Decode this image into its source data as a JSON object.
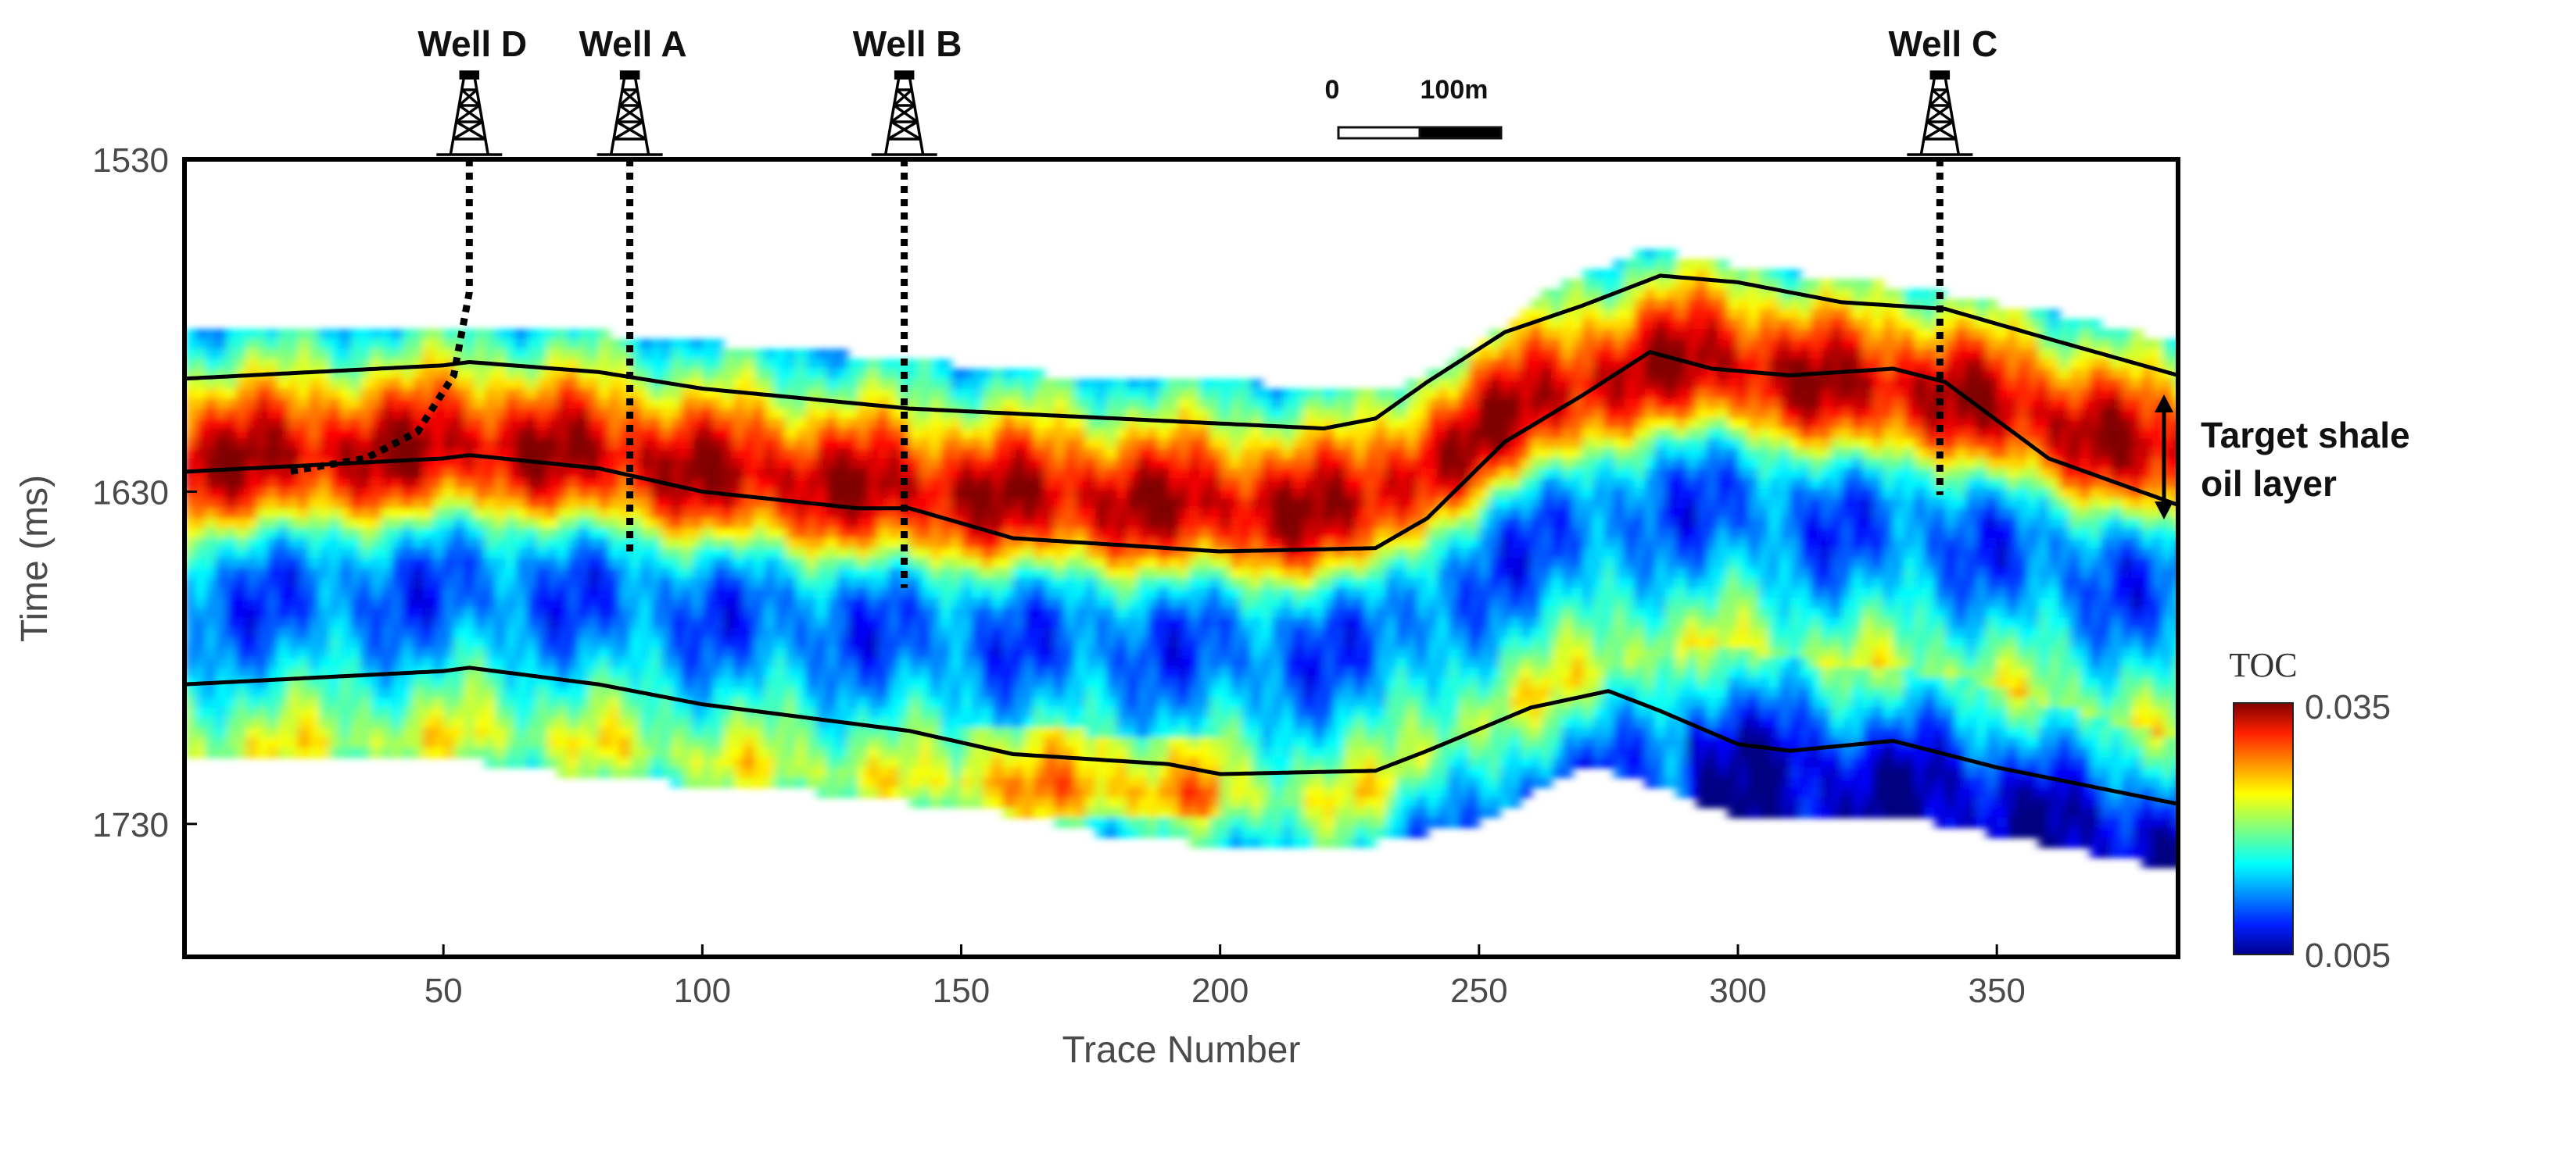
{
  "chart_data": {
    "type": "heatmap",
    "xlabel": "Trace Number",
    "ylabel": "Time (ms)",
    "xlim": [
      0,
      385
    ],
    "ylim": [
      1530,
      1770
    ],
    "x_ticks": [
      50,
      100,
      150,
      200,
      250,
      300,
      350
    ],
    "y_ticks": [
      1530,
      1630,
      1730
    ],
    "colorbar": {
      "title": "TOC",
      "min": 0.005,
      "max": 0.035,
      "min_label": "0.005",
      "max_label": "0.035"
    },
    "wells": [
      {
        "name": "Well D",
        "trace": 55,
        "path": [
          [
            55,
            1530
          ],
          [
            55,
            1570
          ],
          [
            52,
            1595
          ],
          [
            45,
            1612
          ],
          [
            35,
            1620
          ],
          [
            20,
            1624
          ]
        ]
      },
      {
        "name": "Well A",
        "trace": 86,
        "path": [
          [
            86,
            1530
          ],
          [
            86,
            1649
          ]
        ]
      },
      {
        "name": "Well B",
        "trace": 139,
        "path": [
          [
            139,
            1530
          ],
          [
            139,
            1659
          ]
        ]
      },
      {
        "name": "Well C",
        "trace": 339,
        "path": [
          [
            339,
            1530
          ],
          [
            339,
            1631
          ]
        ]
      }
    ],
    "scale_bar": {
      "start_label": "0",
      "end_label": "100m",
      "length_m": 100
    },
    "horizons": [
      {
        "name": "top-horizon",
        "points": [
          [
            0,
            1596
          ],
          [
            50,
            1592
          ],
          [
            55,
            1591
          ],
          [
            80,
            1594
          ],
          [
            100,
            1599
          ],
          [
            140,
            1605
          ],
          [
            180,
            1608
          ],
          [
            220,
            1611
          ],
          [
            230,
            1608
          ],
          [
            240,
            1597
          ],
          [
            255,
            1582
          ],
          [
            270,
            1574
          ],
          [
            285,
            1565
          ],
          [
            300,
            1567
          ],
          [
            320,
            1573
          ],
          [
            340,
            1575
          ],
          [
            360,
            1584
          ],
          [
            385,
            1595
          ]
        ]
      },
      {
        "name": "middle-horizon",
        "points": [
          [
            0,
            1624
          ],
          [
            50,
            1620
          ],
          [
            55,
            1619
          ],
          [
            80,
            1623
          ],
          [
            100,
            1630
          ],
          [
            130,
            1635
          ],
          [
            140,
            1635
          ],
          [
            160,
            1644
          ],
          [
            200,
            1648
          ],
          [
            230,
            1647
          ],
          [
            240,
            1638
          ],
          [
            255,
            1615
          ],
          [
            270,
            1601
          ],
          [
            283,
            1588
          ],
          [
            295,
            1593
          ],
          [
            310,
            1595
          ],
          [
            330,
            1593
          ],
          [
            340,
            1597
          ],
          [
            360,
            1620
          ],
          [
            385,
            1634
          ]
        ]
      },
      {
        "name": "bottom-horizon",
        "points": [
          [
            0,
            1688
          ],
          [
            50,
            1684
          ],
          [
            55,
            1683
          ],
          [
            80,
            1688
          ],
          [
            100,
            1694
          ],
          [
            140,
            1702
          ],
          [
            160,
            1709
          ],
          [
            190,
            1712
          ],
          [
            200,
            1715
          ],
          [
            230,
            1714
          ],
          [
            240,
            1708
          ],
          [
            260,
            1695
          ],
          [
            275,
            1690
          ],
          [
            285,
            1696
          ],
          [
            300,
            1706
          ],
          [
            310,
            1708
          ],
          [
            330,
            1705
          ],
          [
            350,
            1713
          ],
          [
            385,
            1724
          ]
        ]
      }
    ],
    "data_extent": {
      "top": [
        [
          0,
          1582
        ],
        [
          50,
          1580
        ],
        [
          70,
          1581
        ],
        [
          100,
          1585
        ],
        [
          140,
          1590
        ],
        [
          180,
          1597
        ],
        [
          235,
          1598
        ],
        [
          250,
          1586
        ],
        [
          265,
          1568
        ],
        [
          283,
          1557
        ],
        [
          300,
          1562
        ],
        [
          330,
          1568
        ],
        [
          360,
          1576
        ],
        [
          385,
          1585
        ]
      ],
      "bottom": [
        [
          0,
          1710
        ],
        [
          50,
          1710
        ],
        [
          80,
          1716
        ],
        [
          120,
          1720
        ],
        [
          160,
          1727
        ],
        [
          180,
          1734
        ],
        [
          220,
          1738
        ],
        [
          250,
          1730
        ],
        [
          270,
          1712
        ],
        [
          285,
          1719
        ],
        [
          300,
          1728
        ],
        [
          330,
          1727
        ],
        [
          360,
          1736
        ],
        [
          385,
          1744
        ]
      ]
    },
    "toc_profile": [
      {
        "dt": -12,
        "toc": 0.016
      },
      {
        "dt": 0,
        "toc": 0.022
      },
      {
        "dt": 8,
        "toc": 0.027
      },
      {
        "dt": 16,
        "toc": 0.031
      },
      {
        "dt": 24,
        "toc": 0.034
      },
      {
        "dt": 32,
        "toc": 0.032
      },
      {
        "dt": 40,
        "toc": 0.027
      },
      {
        "dt": 50,
        "toc": 0.017
      },
      {
        "dt": 60,
        "toc": 0.012
      },
      {
        "dt": 72,
        "toc": 0.011
      },
      {
        "dt": 85,
        "toc": 0.014
      },
      {
        "dt": 100,
        "toc": 0.019
      },
      {
        "dt": 112,
        "toc": 0.023
      },
      {
        "dt": 125,
        "toc": 0.017
      },
      {
        "dt": 140,
        "toc": 0.011
      },
      {
        "dt": 160,
        "toc": 0.01
      }
    ],
    "annotation": {
      "line1": "Target shale",
      "line2": "oil layer"
    }
  }
}
